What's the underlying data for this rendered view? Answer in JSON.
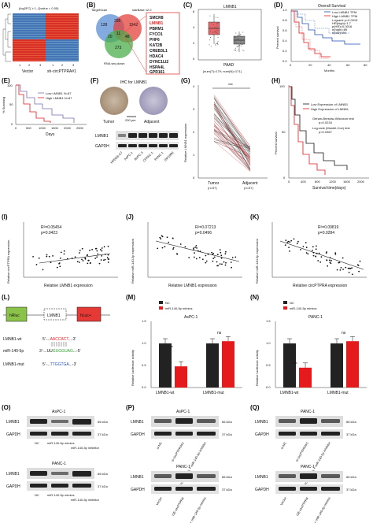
{
  "labels": [
    "(A)",
    "(B)",
    "(C)",
    "(D)",
    "(E)",
    "(F)",
    "(G)",
    "(H)",
    "(I)",
    "(J)",
    "(K)",
    "(L)",
    "(M)",
    "(N)",
    "(O)",
    "(P)",
    "(Q)"
  ],
  "A": {
    "title": "(log2FC| ≥ 1, Qvalue < 0.05)",
    "x_ticks": [
      "1",
      "2",
      "3",
      "1",
      "2",
      "3"
    ],
    "groups": [
      "Vector",
      "sh-circPTPRA#1"
    ]
  },
  "B": {
    "sets": [
      "TargetScan",
      "starBase v2.0",
      "RNA seq down"
    ],
    "counts": [
      "128",
      "295",
      "1942",
      "20",
      "11",
      "48",
      "273"
    ],
    "genes": [
      "SMCR8",
      "LMNB1",
      "PBRM1",
      "FYCO1",
      "PHF6",
      "KAT2B",
      "CREB3L1",
      "HDAC4",
      "DYNC1LI2",
      "HSPA4L",
      "GPR161"
    ]
  },
  "C": {
    "title": "LMNB1",
    "xlabel": "PAAD",
    "subtitle": "[num(T)=179; num(N)=171]",
    "y_ticks": [
      "0",
      "2",
      "4",
      "6"
    ]
  },
  "D": {
    "title": "Overall Survival",
    "legend": [
      "Low LMNB1 TPM",
      "High LMNB1 TPM"
    ],
    "stats": [
      "Logrank p=0.0015",
      "HR(high)=1.7",
      "p(HR)=0.0016",
      "n(high)=89",
      "n(low)=89"
    ],
    "xlabel": "Months",
    "ylabel": "Percent survival",
    "x_ticks": [
      "0",
      "20",
      "40",
      "60",
      "80"
    ],
    "y_ticks": [
      "0.0",
      "0.2",
      "0.4",
      "0.6",
      "0.8",
      "1.0"
    ]
  },
  "E": {
    "legend": [
      "Low LMNB1 N=87",
      "High LMNB1 N=87"
    ],
    "xlabel": "Days",
    "ylabel": "% Surviving",
    "x_ticks": [
      "0",
      "500",
      "1000",
      "1500",
      "2000",
      "2500"
    ],
    "y_ticks": [
      "0",
      "50",
      "100"
    ]
  },
  "F": {
    "title": "IHC for LMNB1",
    "tissues": [
      "Tumor",
      "Adjacent"
    ],
    "scale": "200 μm",
    "cells": [
      "HPDE6-C7",
      "AsPC-1",
      "BxPC-3",
      "CFPAC-1",
      "PANC-1",
      "SW1990"
    ],
    "blots": [
      "LMNB1",
      "GAPDH"
    ]
  },
  "G": {
    "ylabel": "Relative LMNB1 expression",
    "groups": [
      "Tumor",
      "Adjacent"
    ],
    "ns": [
      "(n=57)",
      "(n=57)"
    ],
    "sig": "***",
    "y_ticks": [
      "0",
      "1",
      "2",
      "3",
      "4"
    ]
  },
  "H": {
    "legend": [
      "Low Expression of LMNB1",
      "High Expression of LMNB1"
    ],
    "stats": [
      "Gehan-Breslow-Wilcoxon test",
      "p=0.0234",
      "Log-rank (Mantel-Cox) test",
      "p=0.0367"
    ],
    "xlabel": "Survival time(days)",
    "ylabel": "Percent survival",
    "x_ticks": [
      "0",
      "400",
      "800",
      "1200",
      "1600",
      "2000"
    ],
    "y_ticks": [
      "0",
      "50",
      "100"
    ]
  },
  "I": {
    "stats": [
      "R²=0.05454",
      "p=0.0423"
    ],
    "xlabel": "Relative LMNB1 expression",
    "ylabel": "Relative circPTPRA expression"
  },
  "J": {
    "stats": [
      "R²=0.07213",
      "p=0.0496"
    ],
    "xlabel": "Relative LMNB1 expression",
    "ylabel": "Relative miR-140-5p expression"
  },
  "K": {
    "stats": [
      "R²=0.09819",
      "p=0.0284"
    ],
    "xlabel": "Relative circPTPRA expression",
    "ylabel": "Relative miR-140-5p expression"
  },
  "L": {
    "construct": [
      "hRluc",
      "LMNB1",
      "hLuc+"
    ],
    "rows": [
      {
        "name": "LMNB1-wt",
        "seq_pre": "5'-...",
        "seq_mid": "AACCACT",
        "seq_post": "...-3'"
      },
      {
        "name": "miR-140-5p",
        "seq_pre": "3'-...UU",
        "seq_mid": "GUGGUAG",
        "seq_post": "...-5'"
      },
      {
        "name": "LMNB1-mut",
        "seq_pre": "5'-...",
        "seq_mid": "TTGGTGA",
        "seq_post": "...-3'"
      }
    ]
  },
  "M": {
    "title": "AsPC-1",
    "legend": [
      "NC",
      "miR-140-5p mimics"
    ],
    "ylabel": "Relative luciferase activity",
    "groups": [
      "LMNB1-wt",
      "LMNB1-mut"
    ],
    "sig": [
      "**",
      "ns"
    ],
    "y_ticks": [
      "0.0",
      "0.5",
      "1.0",
      "1.5"
    ]
  },
  "N": {
    "title": "PANC-1",
    "legend": [
      "NC",
      "miR-140-5p mimics"
    ],
    "ylabel": "Relative luciferase activity",
    "groups": [
      "LMNB1-wt",
      "LMNB1-mut"
    ],
    "sig": [
      "***",
      "ns"
    ],
    "y_ticks": [
      "0.0",
      "0.5",
      "1.0",
      "1.5"
    ]
  },
  "O": {
    "top": "AsPC-1",
    "bottom": "PANC-1",
    "lanes": [
      "NC",
      "miR-140-5p mimics",
      "miR-140-5p inhibitor"
    ],
    "blots": [
      "LMNB1",
      "GAPDH"
    ],
    "kda": [
      "66 kDa",
      "37 kDa"
    ]
  },
  "P": {
    "top": "AsPC-1",
    "bottom": "PANC-1",
    "lanes_top": [
      "si-NC",
      "si-circPTPRA#1",
      "si-circPTPRA#1 + miR-140-5p inhibitor"
    ],
    "lanes_bottom": [
      "Vector",
      "OE-circPTPRA",
      "OE-circPTPRA + miR-140-5p mimics"
    ],
    "blots": [
      "LMNB1",
      "GAPDH"
    ],
    "kda": [
      "66 kDa",
      "37 kDa"
    ]
  },
  "Q": {
    "top": "PANC-1",
    "bottom": "PANC-1",
    "lanes_top": [
      "si-NC",
      "si-circPTPRA#1",
      "si-circPTPRA#1 + miR-140-5p inhibitor"
    ],
    "lanes_bottom": [
      "Vector",
      "OE-circPTPRA",
      "OE-circPTPRA + miR-140-5p mimics"
    ],
    "blots": [
      "LMNB1",
      "GAPDH"
    ],
    "kda": [
      "66 kDa",
      "37 kDa"
    ]
  },
  "chart_data": [
    {
      "panel": "M",
      "type": "bar",
      "categories": [
        "LMNB1-wt",
        "LMNB1-mut"
      ],
      "series": [
        {
          "name": "NC",
          "values": [
            1.0,
            1.0
          ]
        },
        {
          "name": "miR-140-5p mimics",
          "values": [
            0.48,
            1.05
          ]
        }
      ],
      "ylim": [
        0,
        1.5
      ]
    },
    {
      "panel": "N",
      "type": "bar",
      "categories": [
        "LMNB1-wt",
        "LMNB1-mut"
      ],
      "series": [
        {
          "name": "NC",
          "values": [
            1.0,
            1.0
          ]
        },
        {
          "name": "miR-140-5p mimics",
          "values": [
            0.45,
            1.05
          ]
        }
      ],
      "ylim": [
        0,
        1.5
      ]
    }
  ],
  "colors": {
    "red": "#e41a1c",
    "blue": "#1f4fb4",
    "green": "#2ca02c",
    "black": "#111111",
    "purple": "#7a6fb0",
    "olive": "#6c8c3a"
  }
}
